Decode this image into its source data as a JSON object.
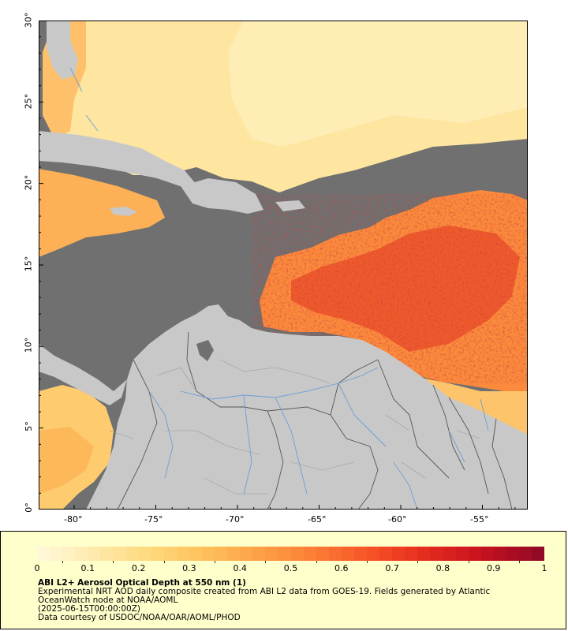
{
  "map": {
    "lon_labels": [
      "-80°",
      "-75°",
      "-70°",
      "-65°",
      "-60°",
      "-55°"
    ],
    "lat_labels": [
      "30°",
      "25°",
      "20°",
      "15°",
      "10°",
      "5°",
      "0°"
    ],
    "colors": {
      "no_data": "#707070",
      "land": "#c8c8c8",
      "border": "#555555",
      "river": "#6a9fd8"
    }
  },
  "legend": {
    "scale_min": 0,
    "scale_max": 1,
    "tick_labels": [
      "0",
      "0.1",
      "0.2",
      "0.3",
      "0.4",
      "0.5",
      "0.6",
      "0.7",
      "0.8",
      "0.9",
      "1"
    ],
    "colors": [
      "#fff7d6",
      "#fee9a8",
      "#fed779",
      "#febf5a",
      "#fd9f44",
      "#fc7a34",
      "#f65026",
      "#e42a1e",
      "#c5111f",
      "#930a26"
    ],
    "title": "ABI L2+ Aerosol Optical Depth at 550 nm (1)",
    "line1": "Experimental NRT AOD daily composite created from ABI L2 data from GOES-19. Fields generated by Atlantic",
    "line2": "OceanWatch node at NOAA/AOML",
    "line3": "(2025-06-15T00:00:00Z)",
    "line4": "Data courtesy of USDOC/NOAA/OAR/AOML/PHOD"
  }
}
